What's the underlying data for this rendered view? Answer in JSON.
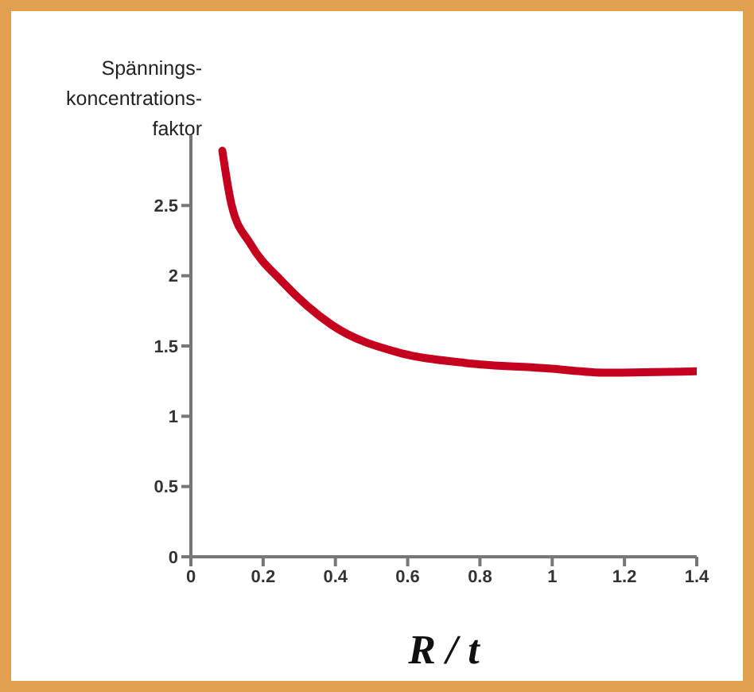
{
  "chart_data": {
    "type": "line",
    "ylabel": "Spännings-\nkoncentrations-\nfaktor",
    "xlabel": "R / t",
    "x": [
      0.087,
      0.113,
      0.164,
      0.252,
      0.39,
      0.58,
      0.758,
      0.99,
      1.15,
      1.4
    ],
    "series": [
      {
        "color": "#c4001e",
        "values": [
          2.89,
          2.5,
          2.23,
          1.96,
          1.65,
          1.45,
          1.38,
          1.34,
          1.31,
          1.32
        ]
      }
    ],
    "xlim": [
      0,
      1.4
    ],
    "xticks": [
      0,
      0.2,
      0.4,
      0.6,
      0.8,
      1,
      1.2,
      1.4
    ],
    "ylim": [
      0,
      3
    ],
    "yticks": [
      0,
      0.5,
      1,
      1.5,
      2,
      2.5
    ],
    "grid": false,
    "legend": false,
    "marker": "none",
    "line_style": "solid"
  }
}
